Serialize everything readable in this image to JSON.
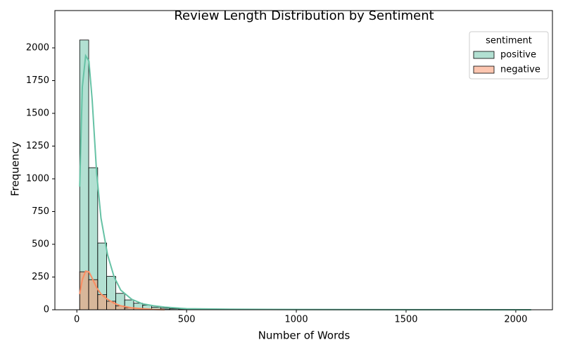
{
  "chart_data": {
    "type": "histogram",
    "title": "Review Length Distribution by Sentiment",
    "xlabel": "Number of Words",
    "ylabel": "Frequency",
    "legend_title": "sentiment",
    "legend_position": "upper right",
    "xlim": [
      -100,
      2167
    ],
    "ylim": [
      0,
      2285
    ],
    "xticks": [
      0,
      500,
      1000,
      1500,
      2000
    ],
    "yticks": [
      0,
      250,
      500,
      750,
      1000,
      1250,
      1500,
      1750,
      2000
    ],
    "bins": [
      13,
      54,
      95,
      136,
      177,
      218,
      259,
      300,
      341,
      382,
      423,
      464,
      505,
      546,
      587,
      628,
      669,
      710,
      751,
      792,
      833,
      874,
      915,
      956,
      997,
      1038,
      1079,
      1120,
      1161,
      1202,
      1243,
      1284,
      1325,
      1366,
      1407,
      1448,
      1489,
      1530,
      1571,
      1612,
      1653,
      1694,
      1735,
      1776,
      1817,
      1858,
      1899,
      1940,
      1981,
      2022,
      2063
    ],
    "series": [
      {
        "name": "positive",
        "color": "#66c2a5",
        "values": [
          2060,
          1085,
          510,
          255,
          125,
          75,
          50,
          35,
          20,
          12,
          8,
          6,
          5,
          4,
          3,
          3,
          2,
          2,
          1,
          1,
          1,
          1,
          1,
          1,
          0,
          0,
          1,
          0,
          0,
          0,
          0,
          0,
          0,
          0,
          0,
          0,
          0,
          0,
          0,
          0,
          0,
          0,
          0,
          0,
          0,
          0,
          0,
          0,
          0,
          1
        ],
        "kde_x": [
          13,
          25,
          40,
          55,
          70,
          90,
          110,
          140,
          170,
          200,
          250,
          300,
          350,
          400,
          500,
          700,
          1000,
          1500,
          2070
        ],
        "kde_y": [
          940,
          1700,
          1940,
          1900,
          1600,
          1050,
          700,
          420,
          250,
          150,
          80,
          45,
          30,
          20,
          8,
          4,
          2,
          1,
          0
        ]
      },
      {
        "name": "negative",
        "color": "#fc8d62",
        "values": [
          290,
          230,
          115,
          65,
          30,
          15,
          10,
          6,
          4,
          2,
          1,
          1,
          0,
          0,
          0,
          0,
          0,
          0,
          0,
          0,
          0,
          0,
          0,
          0,
          0,
          0,
          0,
          0,
          0,
          0,
          0,
          0,
          0,
          0,
          0,
          0,
          0,
          0,
          0,
          0,
          0,
          0,
          0,
          0,
          0,
          0,
          0,
          0,
          0,
          0
        ],
        "kde_x": [
          13,
          25,
          40,
          55,
          70,
          90,
          110,
          140,
          170,
          200,
          250,
          300,
          350,
          400
        ],
        "kde_y": [
          120,
          230,
          295,
          290,
          240,
          170,
          120,
          80,
          50,
          30,
          15,
          8,
          3,
          1
        ]
      }
    ]
  }
}
